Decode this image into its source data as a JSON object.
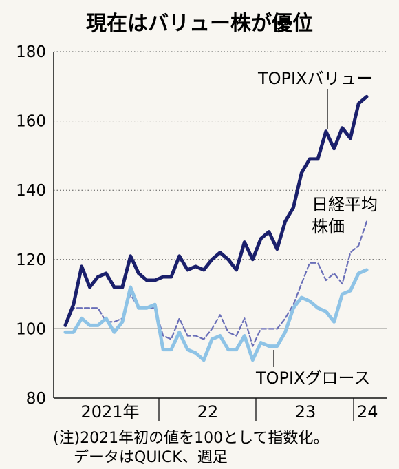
{
  "chart_data": {
    "type": "line",
    "title": "現在はバリュー株が優位",
    "xlabel": "",
    "ylabel": "",
    "ylim": [
      80,
      180
    ],
    "yticks": [
      80,
      100,
      120,
      140,
      160,
      180
    ],
    "xtick_labels": [
      "2021年",
      "22",
      "23",
      "24"
    ],
    "grid": "horizontal dotted",
    "series": [
      {
        "name": "TOPIXバリュー",
        "color": "#1a1f6b",
        "style": "solid-thick",
        "values": [
          101,
          107,
          118,
          112,
          115,
          116,
          112,
          112,
          121,
          116,
          114,
          114,
          115,
          115,
          121,
          117,
          118,
          117,
          120,
          122,
          120,
          117,
          125,
          120,
          126,
          128,
          123,
          131,
          135,
          145,
          149,
          149,
          157,
          152,
          158,
          155,
          165,
          167
        ]
      },
      {
        "name": "日経平均株価",
        "color": "#6a6fb8",
        "style": "dashed",
        "values": [
          101,
          106,
          106,
          106,
          106,
          102,
          102,
          103,
          110,
          106,
          106,
          106,
          98,
          97,
          103,
          98,
          98,
          97,
          100,
          104,
          99,
          98,
          103,
          95,
          100,
          100,
          100,
          103,
          107,
          113,
          119,
          119,
          114,
          116,
          113,
          122,
          124,
          131
        ]
      },
      {
        "name": "TOPIXグロース",
        "color": "#8ec3e6",
        "style": "solid-thick",
        "values": [
          99,
          99,
          103,
          101,
          101,
          103,
          99,
          102,
          112,
          106,
          106,
          107,
          94,
          94,
          99,
          94,
          93,
          91,
          97,
          98,
          94,
          94,
          98,
          91,
          96,
          95,
          95,
          99,
          106,
          109,
          108,
          106,
          105,
          102,
          110,
          111,
          116,
          117
        ]
      }
    ],
    "labels": {
      "value": "TOPIXバリュー",
      "nikkei_line1": "日経平均",
      "nikkei_line2": "株価",
      "growth": "TOPIXグロース"
    }
  },
  "note": {
    "line1": "(注)2021年初の値を100として指数化。",
    "line2": "データはQUICK、週足"
  }
}
